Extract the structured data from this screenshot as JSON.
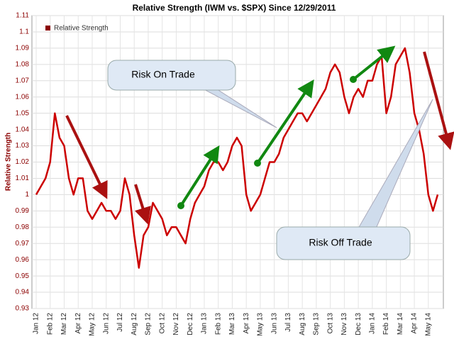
{
  "chart_data": {
    "type": "line",
    "title": "Relative Strength (IWM vs. $SPX) Since 12/29/2011",
    "y_label": "Relative Strength",
    "annotations": [
      "Risk On Trade",
      "Risk Off Trade"
    ],
    "categories": [
      "Jan 12",
      null,
      null,
      "Feb 12",
      null,
      null,
      "Mar 12",
      null,
      null,
      "Apr 12",
      null,
      null,
      "May 12",
      null,
      null,
      "Jun 12",
      null,
      null,
      "Jul 12",
      null,
      null,
      "Aug 12",
      null,
      null,
      "Sep 12",
      null,
      null,
      "Oct 12",
      null,
      null,
      "Nov 12",
      null,
      null,
      "Dec 12",
      null,
      null,
      "Jan 13",
      null,
      null,
      "Feb 13",
      null,
      null,
      "Mar 13",
      null,
      null,
      "Apr 13",
      null,
      null,
      "May 13",
      null,
      null,
      "Jun 13",
      null,
      null,
      "Jul 13",
      null,
      null,
      "Aug 13",
      null,
      null,
      "Sep 13",
      null,
      null,
      "Oct 13",
      null,
      null,
      "Nov 13",
      null,
      null,
      "Dec 13",
      null,
      null,
      "Jan 14",
      null,
      null,
      "Feb 14",
      null,
      null,
      "Mar 14",
      null,
      null,
      "Apr 14",
      null,
      null,
      "May 14",
      null,
      null
    ],
    "series": [
      {
        "name": "Relative Strength",
        "color": "#cc0000",
        "values": [
          1.0,
          1.005,
          1.01,
          1.02,
          1.05,
          1.035,
          1.03,
          1.01,
          1.0,
          1.01,
          1.01,
          0.99,
          0.985,
          0.99,
          0.995,
          0.99,
          0.99,
          0.985,
          0.99,
          1.01,
          1.0,
          0.975,
          0.955,
          0.975,
          0.98,
          0.995,
          0.99,
          0.985,
          0.975,
          0.98,
          0.98,
          0.975,
          0.97,
          0.985,
          0.995,
          1.0,
          1.005,
          1.015,
          1.02,
          1.02,
          1.015,
          1.02,
          1.03,
          1.035,
          1.03,
          1.0,
          0.99,
          0.995,
          1.0,
          1.01,
          1.02,
          1.02,
          1.025,
          1.035,
          1.04,
          1.045,
          1.05,
          1.05,
          1.045,
          1.05,
          1.055,
          1.06,
          1.065,
          1.075,
          1.08,
          1.075,
          1.06,
          1.05,
          1.06,
          1.065,
          1.06,
          1.07,
          1.07,
          1.08,
          1.085,
          1.05,
          1.06,
          1.08,
          1.085,
          1.09,
          1.075,
          1.05,
          1.04,
          1.025,
          1.0,
          0.99,
          1.0
        ]
      }
    ],
    "ylim": [
      0.93,
      1.11
    ],
    "yticks": [
      0.93,
      0.94,
      0.95,
      0.96,
      0.97,
      0.98,
      0.99,
      1,
      1.01,
      1.02,
      1.03,
      1.04,
      1.05,
      1.06,
      1.07,
      1.08,
      1.09,
      1.1,
      1.11
    ],
    "grid": true
  }
}
